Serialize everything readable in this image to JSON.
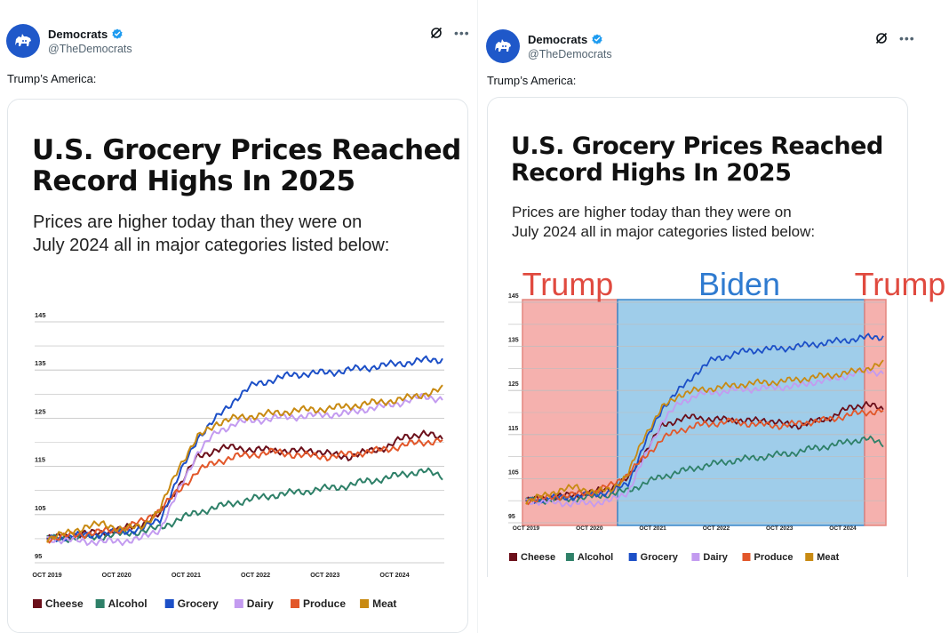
{
  "colors": {
    "cheese": "#6b0f1a",
    "alcohol": "#2e8068",
    "grocery": "#1c4fc7",
    "dairy": "#c39bf0",
    "produce": "#e2572a",
    "meat": "#c88a12",
    "trump_band": "#f3a3a0",
    "biden_band": "#8ec4e6",
    "trump_label": "#e04a3f",
    "biden_label": "#2f7bd0",
    "avatar": "#1f58c9",
    "verified": "#1d9bf0"
  },
  "left_post": {
    "author": "Democrats",
    "handle": "@TheDemocrats",
    "text": "Trump’s America:",
    "avatar_icon": "donkey-logo-icon",
    "card": {
      "title_line1": "U.S. Grocery Prices Reached",
      "title_line2": "Record Highs In 2025",
      "subtitle_line1": "Prices are higher today than they were on",
      "subtitle_line2": "July 2024 all in major categories listed below:"
    }
  },
  "right_post": {
    "author": "Democrats",
    "handle": "@TheDemocrats",
    "text": "Trump’s America:",
    "avatar_icon": "donkey-logo-icon",
    "card": {
      "title_line1": "U.S. Grocery Prices Reached",
      "title_line2": "Record Highs In 2025",
      "subtitle_line1": "Prices are higher today than they were on",
      "subtitle_line2": "July 2024 all in major categories listed below:"
    },
    "annotations": {
      "left_band": "Trump",
      "middle_band": "Biden",
      "right_band": "Trump"
    }
  },
  "chart_data": {
    "type": "line",
    "x_ticks": [
      "OCT 2019",
      "OCT 2020",
      "OCT 2021",
      "OCT 2022",
      "OCT 2023",
      "OCT 2024"
    ],
    "y_ticks": [
      95,
      105,
      115,
      125,
      135,
      145
    ],
    "ylim": [
      95,
      145
    ],
    "grid": true,
    "legend_position": "bottom",
    "series": [
      {
        "name": "Cheese",
        "key": "cheese",
        "values": [
          100,
          100.5,
          101,
          101.3,
          102,
          103,
          105,
          111,
          117,
          118.5,
          119,
          118.3,
          118.5,
          118,
          118.4,
          117.5,
          117,
          118,
          119,
          121,
          122,
          120.5
        ]
      },
      {
        "name": "Alcohol",
        "key": "alcohol",
        "values": [
          100,
          100.1,
          100.3,
          100.5,
          101,
          101.5,
          102.3,
          104,
          105.5,
          106.5,
          107.5,
          108.3,
          109,
          109.5,
          110,
          110.5,
          111,
          112,
          112.5,
          113.5,
          114,
          113
        ]
      },
      {
        "name": "Grocery",
        "key": "grocery",
        "values": [
          100,
          100.3,
          100.7,
          101,
          101.5,
          102,
          104,
          113,
          121,
          125,
          129,
          132,
          133,
          134,
          134.3,
          134.5,
          135,
          135.5,
          136,
          136.5,
          137,
          137.2
        ]
      },
      {
        "name": "Dairy",
        "key": "dairy",
        "values": [
          100,
          99.7,
          99.5,
          99.3,
          99.5,
          100,
          102,
          110,
          118,
          122,
          124,
          124.5,
          125,
          125.3,
          125.5,
          125.8,
          126,
          127,
          127.5,
          128.5,
          129.5,
          129
        ]
      },
      {
        "name": "Produce",
        "key": "produce",
        "values": [
          100,
          100.5,
          101,
          101.5,
          102,
          103.5,
          106,
          110,
          114,
          116,
          117,
          117.5,
          118,
          117.5,
          117.2,
          117,
          117.5,
          118,
          118.5,
          119.5,
          120,
          120.5
        ]
      },
      {
        "name": "Meat",
        "key": "meat",
        "values": [
          100,
          101,
          102.5,
          103,
          102,
          102.5,
          106,
          115,
          121,
          124,
          125,
          125.5,
          126,
          126.5,
          126.8,
          127,
          127.5,
          128,
          128.5,
          129,
          130,
          131
        ]
      }
    ],
    "legend": [
      "Cheese",
      "Alcohol",
      "Grocery",
      "Dairy",
      "Produce",
      "Meat"
    ]
  }
}
